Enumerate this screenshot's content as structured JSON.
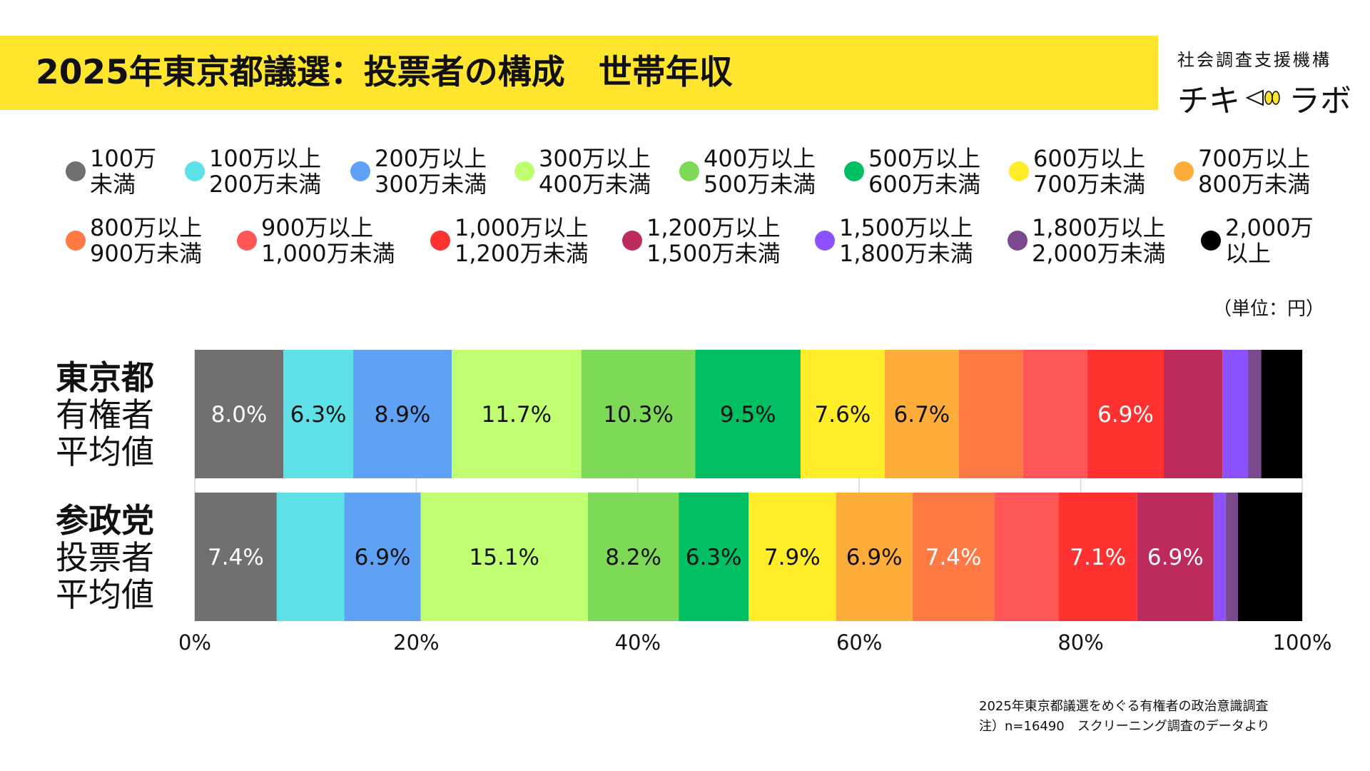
{
  "header": {
    "title": "2025年東京都議選：投票者の構成　世帯年収",
    "logo_top": "社会調査支援機構",
    "logo_left": "チキ",
    "logo_right": "ラボ"
  },
  "unit_note": "（単位：円）",
  "source": {
    "line1": "2025年東京都議選をめぐる有権者の政治意識調査",
    "line2": "注）n=16490　スクリーニング調査のデータより"
  },
  "rows": [
    {
      "line1": "東京都",
      "line2": "有権者",
      "line3": "平均値"
    },
    {
      "line1": "参政党",
      "line2": "投票者",
      "line3": "平均値"
    }
  ],
  "legend": [
    {
      "label": "100万\n未満",
      "color": "#707070"
    },
    {
      "label": "100万以上\n200万未満",
      "color": "#5EE1E6"
    },
    {
      "label": "200万以上\n300万未満",
      "color": "#5EA1F5"
    },
    {
      "label": "300万以上\n400万未満",
      "color": "#C1FF72"
    },
    {
      "label": "400万以上\n500万未満",
      "color": "#7ED957"
    },
    {
      "label": "500万以上\n600万未満",
      "color": "#00BF63"
    },
    {
      "label": "600万以上\n700万未満",
      "color": "#FFED29"
    },
    {
      "label": "700万以上\n800万未満",
      "color": "#FFAD3A"
    },
    {
      "label": "800万以上\n900万未満",
      "color": "#FF7A45"
    },
    {
      "label": "900万以上\n1,000万未満",
      "color": "#FF5757"
    },
    {
      "label": "1,000万以上\n1,200万未満",
      "color": "#FF3131"
    },
    {
      "label": "1,200万以上\n1,500万未満",
      "color": "#BC2A5E"
    },
    {
      "label": "1,500万以上\n1,800万未満",
      "color": "#8C52FF"
    },
    {
      "label": "1,800万以上\n2,000万未満",
      "color": "#7A4A8C"
    },
    {
      "label": "2,000万\n以上",
      "color": "#000000"
    }
  ],
  "chart_data": {
    "type": "bar",
    "orientation": "horizontal",
    "stacked": true,
    "normalized_percent": true,
    "categories": [
      "東京都有権者平均値",
      "参政党投票者平均値"
    ],
    "series": [
      {
        "name": "100万未満",
        "values": [
          8.0,
          7.4
        ],
        "labels": [
          "8.0%",
          "7.4%"
        ],
        "label_color": "#ffffff"
      },
      {
        "name": "100万以上200万未満",
        "values": [
          6.3,
          6.1
        ],
        "labels": [
          "6.3%",
          ""
        ],
        "label_color": "#111111"
      },
      {
        "name": "200万以上300万未満",
        "values": [
          8.9,
          6.9
        ],
        "labels": [
          "8.9%",
          "6.9%"
        ],
        "label_color": "#111111"
      },
      {
        "name": "300万以上400万未満",
        "values": [
          11.7,
          15.1
        ],
        "labels": [
          "11.7%",
          "15.1%"
        ],
        "label_color": "#111111"
      },
      {
        "name": "400万以上500万未満",
        "values": [
          10.3,
          8.2
        ],
        "labels": [
          "10.3%",
          "8.2%"
        ],
        "label_color": "#111111"
      },
      {
        "name": "500万以上600万未満",
        "values": [
          9.5,
          6.3
        ],
        "labels": [
          "9.5%",
          "6.3%"
        ],
        "label_color": "#111111"
      },
      {
        "name": "600万以上700万未満",
        "values": [
          7.6,
          7.9
        ],
        "labels": [
          "7.6%",
          "7.9%"
        ],
        "label_color": "#111111"
      },
      {
        "name": "700万以上800万未満",
        "values": [
          6.7,
          6.9
        ],
        "labels": [
          "6.7%",
          "6.9%"
        ],
        "label_color": "#111111"
      },
      {
        "name": "800万以上900万未満",
        "values": [
          5.8,
          7.4
        ],
        "labels": [
          "",
          "7.4%"
        ],
        "label_color": "#ffffff"
      },
      {
        "name": "900万以上1,000万未満",
        "values": [
          5.8,
          5.8
        ],
        "labels": [
          "",
          ""
        ],
        "label_color": "#ffffff"
      },
      {
        "name": "1,000万以上1,200万未満",
        "values": [
          6.9,
          7.1
        ],
        "labels": [
          "6.9%",
          "7.1%"
        ],
        "label_color": "#ffffff"
      },
      {
        "name": "1,200万以上1,500万未満",
        "values": [
          5.3,
          6.9
        ],
        "labels": [
          "",
          "6.9%"
        ],
        "label_color": "#ffffff"
      },
      {
        "name": "1,500万以上1,800万未満",
        "values": [
          2.3,
          1.1
        ],
        "labels": [
          "",
          ""
        ],
        "label_color": "#ffffff"
      },
      {
        "name": "1,800万以上2,000万未満",
        "values": [
          1.2,
          1.1
        ],
        "labels": [
          "",
          ""
        ],
        "label_color": "#ffffff"
      },
      {
        "name": "2,000万以上",
        "values": [
          3.7,
          5.8
        ],
        "labels": [
          "",
          ""
        ],
        "label_color": "#ffffff"
      }
    ],
    "xlim": [
      0,
      100
    ],
    "x_ticks": [
      0,
      20,
      40,
      60,
      80,
      100
    ],
    "x_tick_labels": [
      "0%",
      "20%",
      "40%",
      "60%",
      "80%",
      "100%"
    ],
    "grid": true,
    "legend_position": "top"
  }
}
